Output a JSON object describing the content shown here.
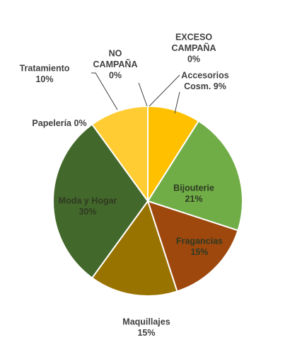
{
  "chart_data": {
    "type": "pie",
    "title": "",
    "slices": [
      {
        "name": "Accesorios Cosm.",
        "value": 9,
        "label_lines": [
          "Accesorios",
          "Cosm. 9%"
        ],
        "color": "#FFC000"
      },
      {
        "name": "Bijouterie",
        "value": 21,
        "label_lines": [
          "Bijouterie",
          "21%"
        ],
        "color": "#70AD47"
      },
      {
        "name": "Fragancias",
        "value": 15,
        "label_lines": [
          "Fragancias",
          "15%"
        ],
        "color": "#9E480E"
      },
      {
        "name": "Maquillajes",
        "value": 15,
        "label_lines": [
          "Maquillajes",
          "15%"
        ],
        "color": "#997300"
      },
      {
        "name": "Moda y Hogar",
        "value": 30,
        "label_lines": [
          "Moda y Hogar",
          "30%"
        ],
        "color": "#43682B"
      },
      {
        "name": "Papelería",
        "value": 0,
        "label_lines": [
          "Papelería 0%"
        ],
        "color": "#FFC000"
      },
      {
        "name": "Tratamiento",
        "value": 10,
        "label_lines": [
          "Tratamiento",
          "10%"
        ],
        "color": "#FFCD33"
      },
      {
        "name": "NO CAMPAÑA",
        "value": 0,
        "label_lines": [
          "NO",
          "CAMPAÑA",
          "0%"
        ],
        "color": "#A5A5A5"
      },
      {
        "name": "EXCESO CAMPAÑA",
        "value": 0,
        "label_lines": [
          "EXCESO",
          "CAMPAÑA",
          "0%"
        ],
        "color": "#5B9BD5"
      }
    ],
    "legend": "none"
  }
}
